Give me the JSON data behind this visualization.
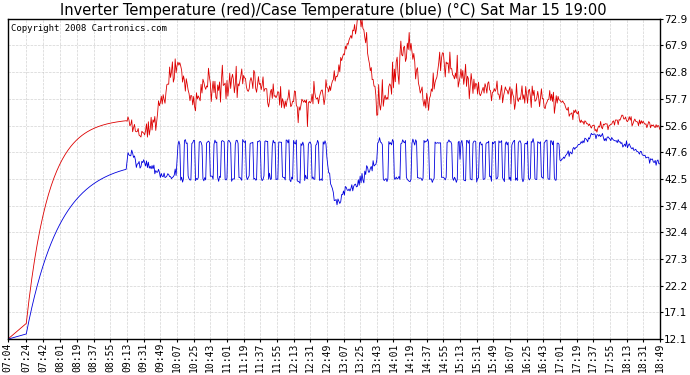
{
  "title": "Inverter Temperature (red)/Case Temperature (blue) (°C) Sat Mar 15 19:00",
  "copyright": "Copyright 2008 Cartronics.com",
  "y_ticks": [
    12.1,
    17.1,
    22.2,
    27.3,
    32.4,
    37.4,
    42.5,
    47.6,
    52.6,
    57.7,
    62.8,
    67.9,
    72.9
  ],
  "ylim": [
    12.1,
    72.9
  ],
  "bg_color": "#ffffff",
  "plot_bg_color": "#ffffff",
  "grid_color": "#c8c8c8",
  "red_color": "#dd0000",
  "blue_color": "#0000dd",
  "title_fontsize": 10.5,
  "copyright_fontsize": 6.5,
  "tick_fontsize": 7.5,
  "figwidth": 6.9,
  "figheight": 3.75,
  "dpi": 100
}
